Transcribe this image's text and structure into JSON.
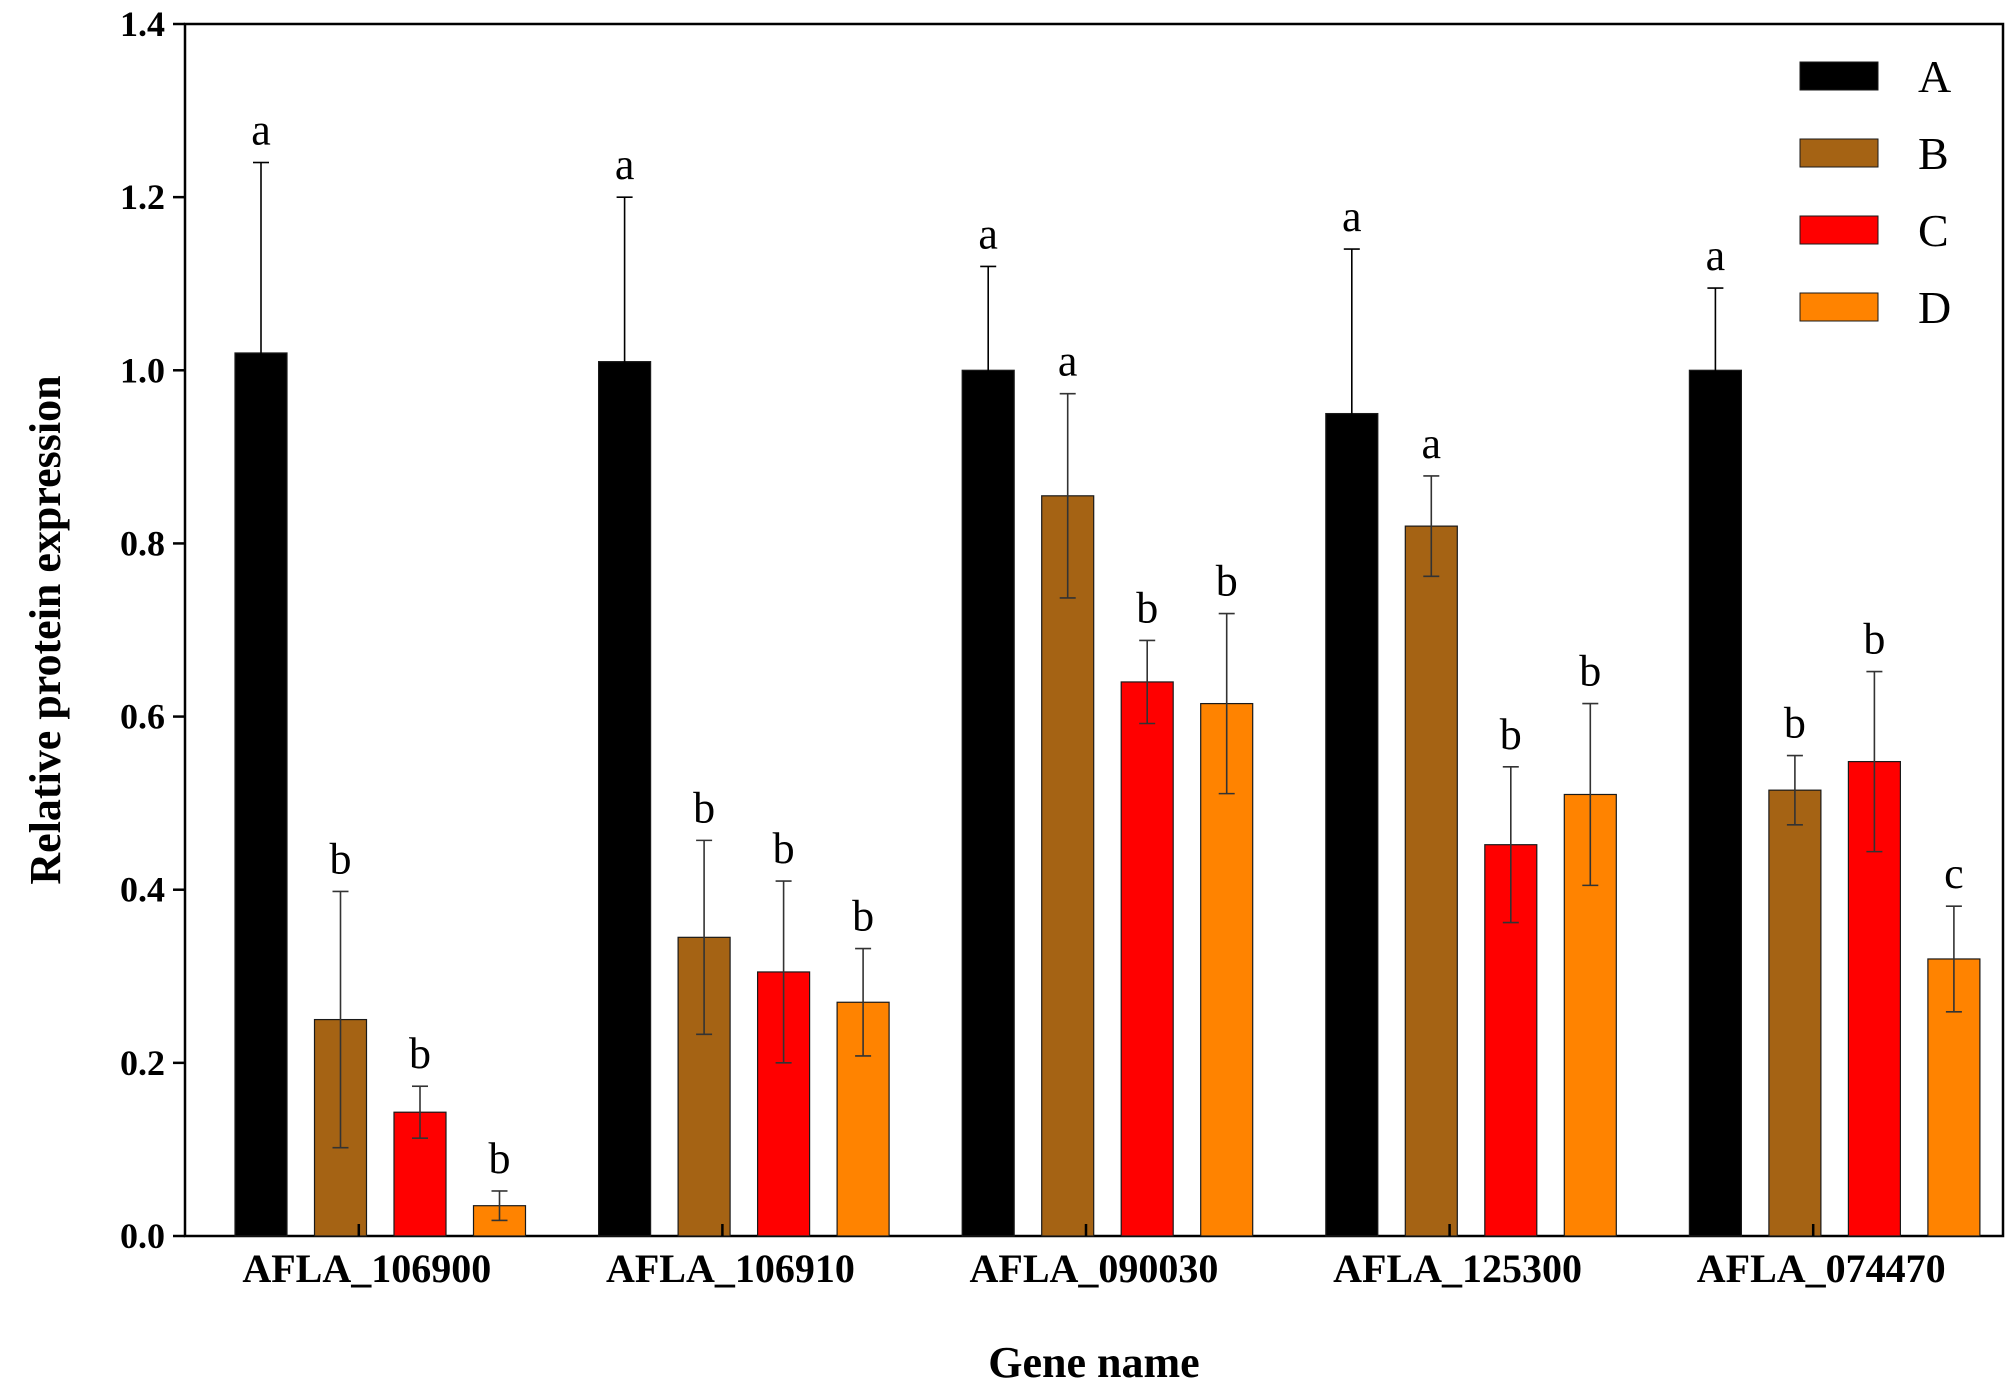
{
  "chart_data": {
    "type": "bar",
    "title": "",
    "xlabel": "Gene name",
    "ylabel": "Relative protein expression",
    "ylim": [
      0,
      1.4
    ],
    "yticks": [
      "0.0",
      "0.2",
      "0.4",
      "0.6",
      "0.8",
      "1.0",
      "1.2",
      "1.4"
    ],
    "categories": [
      "AFLA_106900",
      "AFLA_106910",
      "AFLA_090030",
      "AFLA_125300",
      "AFLA_074470"
    ],
    "legend_position": "top-right",
    "series": [
      {
        "name": "A",
        "color": "#000000",
        "values": [
          1.02,
          1.01,
          1.0,
          0.95,
          1.0
        ],
        "errors": [
          0.22,
          0.19,
          0.12,
          0.19,
          0.095
        ],
        "letters": [
          "a",
          "a",
          "a",
          "a",
          "a"
        ]
      },
      {
        "name": "B",
        "color": "#A56314",
        "values": [
          0.25,
          0.345,
          0.855,
          0.82,
          0.515
        ],
        "errors": [
          0.148,
          0.112,
          0.118,
          0.058,
          0.04
        ],
        "letters": [
          "b",
          "b",
          "a",
          "a",
          "b"
        ]
      },
      {
        "name": "C",
        "color": "#FF0000",
        "values": [
          0.143,
          0.305,
          0.64,
          0.452,
          0.548
        ],
        "errors": [
          0.03,
          0.105,
          0.048,
          0.09,
          0.104
        ],
        "letters": [
          "b",
          "b",
          "b",
          "b",
          "b"
        ]
      },
      {
        "name": "D",
        "color": "#FF8300",
        "values": [
          0.035,
          0.27,
          0.615,
          0.51,
          0.32
        ],
        "errors": [
          0.017,
          0.062,
          0.104,
          0.105,
          0.061
        ],
        "letters": [
          "b",
          "b",
          "b",
          "b",
          "c"
        ]
      }
    ]
  }
}
